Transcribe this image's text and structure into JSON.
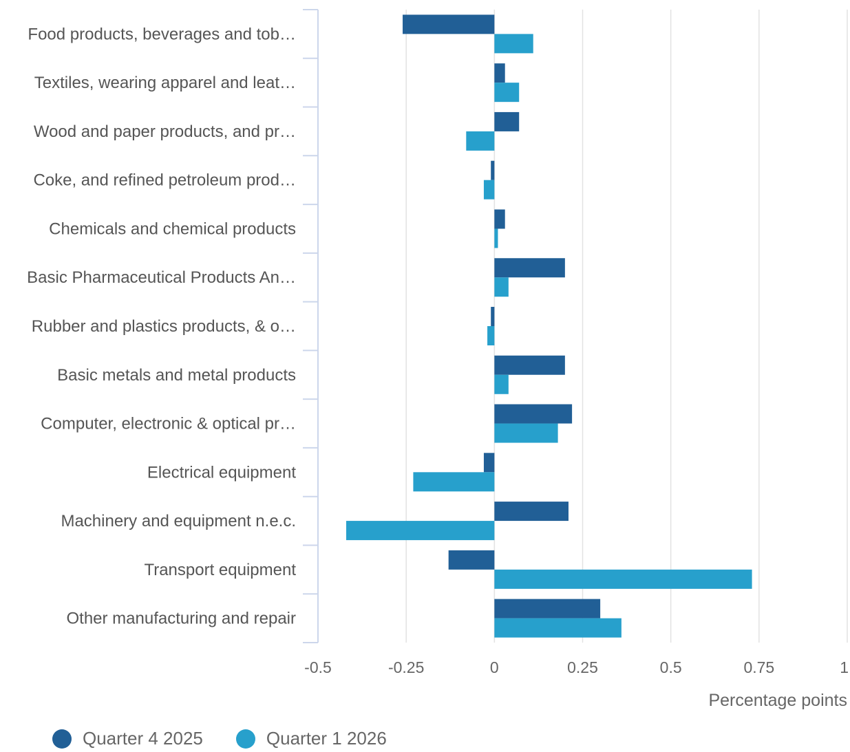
{
  "chart_data": {
    "type": "bar",
    "orientation": "horizontal",
    "categories": [
      "Food products, beverages and tob…",
      "Textiles, wearing apparel and leat…",
      "Wood and paper products, and pr…",
      "Coke, and refined petroleum prod…",
      "Chemicals and chemical products",
      "Basic Pharmaceutical Products An…",
      "Rubber and plastics products, & o…",
      "Basic metals and metal products",
      "Computer, electronic & optical pr…",
      "Electrical equipment",
      "Machinery and equipment n.e.c.",
      "Transport equipment",
      "Other manufacturing and repair"
    ],
    "series": [
      {
        "name": "Quarter 4 2025",
        "color": "#215f96",
        "values": [
          -0.26,
          0.03,
          0.07,
          -0.01,
          0.03,
          0.2,
          -0.01,
          0.2,
          0.22,
          -0.03,
          0.21,
          -0.13,
          0.3
        ]
      },
      {
        "name": "Quarter 1 2026",
        "color": "#27a0cc",
        "values": [
          0.11,
          0.07,
          -0.08,
          -0.03,
          0.01,
          0.04,
          -0.02,
          0.04,
          0.18,
          -0.23,
          -0.42,
          0.73,
          0.36
        ]
      }
    ],
    "xlim": [
      -0.5,
      1
    ],
    "ticks": [
      {
        "value": -0.5,
        "label": "-0.5"
      },
      {
        "value": -0.25,
        "label": "-0.25"
      },
      {
        "value": 0,
        "label": "0"
      },
      {
        "value": 0.25,
        "label": "0.25"
      },
      {
        "value": 0.5,
        "label": "0.5"
      },
      {
        "value": 0.75,
        "label": "0.75"
      },
      {
        "value": 1,
        "label": "1"
      }
    ],
    "xlabel": "Percentage points",
    "grid": true,
    "legend_position": "bottom-left",
    "gridline_color": "#e2e2e2",
    "axis_color": "#ccd6eb"
  }
}
